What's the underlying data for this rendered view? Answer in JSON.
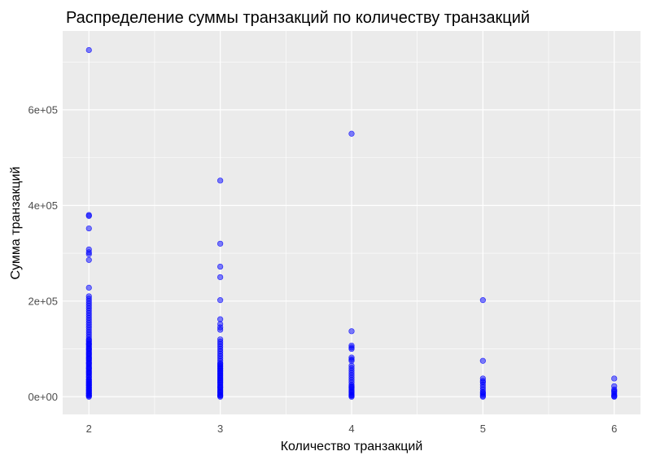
{
  "chart_data": {
    "type": "scatter",
    "title": "Распределение суммы транзакций по количеству транзакций",
    "xlabel": "Количество транзакций",
    "ylabel": "Сумма транзакций",
    "xlim": [
      1.8,
      6.2
    ],
    "ylim": [
      -37000,
      765000
    ],
    "x_ticks": [
      2,
      3,
      4,
      5,
      6
    ],
    "x_tick_labels": [
      "2",
      "3",
      "4",
      "5",
      "6"
    ],
    "y_ticks": [
      0,
      200000,
      400000,
      600000
    ],
    "y_tick_labels": [
      "0e+00",
      "2e+05",
      "4e+05",
      "6e+05"
    ],
    "grid": true,
    "point_color": "#0000ff",
    "point_opacity": 0.5,
    "panel_background": "#ebebeb",
    "grid_color": "#ffffff",
    "series": [
      {
        "x": [
          2,
          2,
          2,
          2,
          2,
          2,
          2,
          2,
          2,
          2,
          2,
          2,
          2,
          2,
          2,
          2,
          2,
          2,
          2,
          2,
          2,
          2,
          2,
          2,
          2,
          2,
          2,
          2,
          2,
          2,
          2,
          2,
          2,
          2,
          2,
          2,
          2,
          2,
          2,
          2,
          2,
          2,
          2,
          2,
          2,
          2,
          2,
          2,
          2,
          2,
          2,
          2,
          2,
          2,
          2,
          2,
          2,
          2,
          2,
          2,
          2,
          2,
          2,
          2,
          2,
          2,
          2,
          2,
          2,
          2,
          2,
          2,
          2,
          2,
          2,
          2,
          2,
          2,
          2,
          2,
          3,
          3,
          3,
          3,
          3,
          3,
          3,
          3,
          3,
          3,
          3,
          3,
          3,
          3,
          3,
          3,
          3,
          3,
          3,
          3,
          3,
          3,
          3,
          3,
          3,
          3,
          3,
          3,
          3,
          3,
          3,
          3,
          3,
          3,
          3,
          3,
          3,
          3,
          3,
          3,
          3,
          3,
          3,
          3,
          3,
          3,
          3,
          3,
          3,
          4,
          4,
          4,
          4,
          4,
          4,
          4,
          4,
          4,
          4,
          4,
          4,
          4,
          4,
          4,
          4,
          4,
          4,
          4,
          4,
          4,
          4,
          4,
          4,
          4,
          4,
          4,
          4,
          5,
          5,
          5,
          5,
          5,
          5,
          5,
          5,
          5,
          5,
          5,
          5,
          5,
          6,
          6,
          6,
          6,
          6,
          6,
          6,
          6,
          6
        ],
        "y": [
          725000,
          380000,
          378000,
          352000,
          308000,
          302000,
          298000,
          286000,
          228000,
          210000,
          205000,
          200000,
          195000,
          190000,
          185000,
          180000,
          175000,
          170000,
          165000,
          160000,
          155000,
          150000,
          145000,
          140000,
          135000,
          130000,
          125000,
          120000,
          115000,
          110000,
          105000,
          100000,
          95000,
          90000,
          85000,
          80000,
          75000,
          70000,
          65000,
          60000,
          55000,
          50000,
          45000,
          40000,
          36000,
          32000,
          28000,
          24000,
          20000,
          16000,
          12000,
          8000,
          5000,
          2000,
          0,
          3000,
          7000,
          11000,
          15000,
          19000,
          23000,
          27000,
          31000,
          35000,
          42000,
          48000,
          52000,
          58000,
          62000,
          68000,
          72000,
          78000,
          82000,
          88000,
          92000,
          98000,
          102000,
          108000,
          112000,
          118000,
          452000,
          320000,
          272000,
          250000,
          202000,
          162000,
          152000,
          145000,
          140000,
          120000,
          115000,
          110000,
          105000,
          100000,
          95000,
          90000,
          85000,
          80000,
          75000,
          70000,
          65000,
          60000,
          55000,
          50000,
          45000,
          40000,
          35000,
          30000,
          25000,
          20000,
          15000,
          10000,
          5000,
          2000,
          0,
          3000,
          8000,
          12000,
          18000,
          22000,
          28000,
          33000,
          38000,
          43000,
          48000,
          53000,
          58000,
          63000,
          68000,
          550000,
          137000,
          107000,
          103000,
          100000,
          82000,
          78000,
          75000,
          65000,
          60000,
          55000,
          50000,
          45000,
          40000,
          35000,
          30000,
          25000,
          20000,
          15000,
          10000,
          5000,
          2000,
          0,
          3000,
          8000,
          12000,
          18000,
          22000,
          202000,
          75000,
          38000,
          33000,
          30000,
          25000,
          20000,
          15000,
          10000,
          5000,
          2000,
          0,
          8000,
          38000,
          22000,
          15000,
          10000,
          6000,
          3000,
          1000,
          0,
          12000
        ]
      }
    ]
  }
}
